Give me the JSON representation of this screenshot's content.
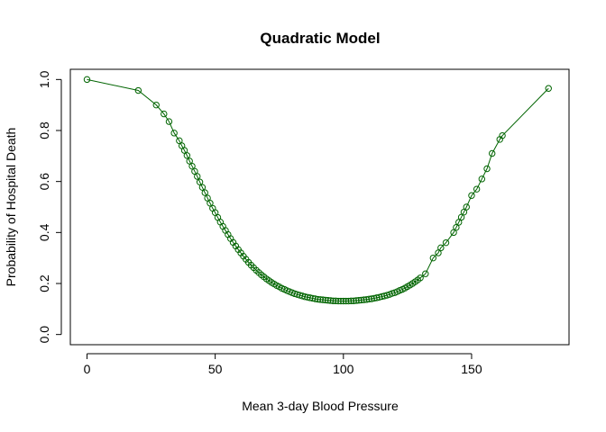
{
  "chart_data": {
    "type": "line",
    "title": "Quadratic Model",
    "xlabel": "Mean 3-day Blood Pressure",
    "ylabel": "Probability of Hospital Death",
    "xlim": [
      -6.5,
      188
    ],
    "ylim": [
      -0.04,
      1.04
    ],
    "x_ticks": [
      0,
      50,
      100,
      150
    ],
    "y_ticks": [
      0.0,
      0.2,
      0.4,
      0.6,
      0.8,
      1.0
    ],
    "x_tick_labels": [
      "0",
      "50",
      "100",
      "150"
    ],
    "y_tick_labels": [
      "0.0",
      "0.2",
      "0.4",
      "0.6",
      "0.8",
      "1.0"
    ],
    "grid": false,
    "legend": "none",
    "series": [
      {
        "color": "#006400",
        "marker": "open-circle",
        "x": [
          0,
          20,
          27,
          30,
          32,
          34,
          36,
          37,
          38,
          39,
          40,
          41,
          42,
          43,
          44,
          45,
          46,
          47,
          48,
          49,
          50,
          51,
          52,
          53,
          54,
          55,
          56,
          57,
          58,
          59,
          60,
          61,
          62,
          63,
          64,
          65,
          66,
          67,
          68,
          69,
          70,
          71,
          72,
          73,
          74,
          75,
          76,
          77,
          78,
          79,
          80,
          81,
          82,
          83,
          84,
          85,
          86,
          87,
          88,
          89,
          90,
          91,
          92,
          93,
          94,
          95,
          96,
          97,
          98,
          99,
          100,
          101,
          102,
          103,
          104,
          105,
          106,
          107,
          108,
          109,
          110,
          111,
          112,
          113,
          114,
          115,
          116,
          117,
          118,
          119,
          120,
          121,
          122,
          123,
          124,
          125,
          126,
          127,
          128,
          129,
          130,
          132,
          135,
          137,
          138,
          140,
          143,
          144,
          145,
          146,
          147,
          148,
          150,
          152,
          154,
          156,
          158,
          161,
          162,
          180
        ],
        "y": [
          1.0,
          0.957,
          0.9,
          0.865,
          0.835,
          0.79,
          0.76,
          0.74,
          0.722,
          0.702,
          0.68,
          0.66,
          0.64,
          0.62,
          0.598,
          0.577,
          0.556,
          0.535,
          0.515,
          0.495,
          0.478,
          0.459,
          0.441,
          0.424,
          0.408,
          0.392,
          0.376,
          0.361,
          0.347,
          0.333,
          0.32,
          0.307,
          0.295,
          0.283,
          0.272,
          0.262,
          0.252,
          0.243,
          0.234,
          0.226,
          0.218,
          0.211,
          0.204,
          0.198,
          0.192,
          0.187,
          0.181,
          0.177,
          0.172,
          0.168,
          0.164,
          0.16,
          0.157,
          0.154,
          0.151,
          0.148,
          0.146,
          0.144,
          0.142,
          0.14,
          0.138,
          0.137,
          0.136,
          0.135,
          0.134,
          0.133,
          0.132,
          0.132,
          0.131,
          0.131,
          0.131,
          0.131,
          0.131,
          0.132,
          0.132,
          0.133,
          0.134,
          0.135,
          0.136,
          0.137,
          0.139,
          0.14,
          0.142,
          0.144,
          0.146,
          0.149,
          0.151,
          0.154,
          0.157,
          0.161,
          0.164,
          0.168,
          0.173,
          0.177,
          0.182,
          0.188,
          0.194,
          0.2,
          0.207,
          0.214,
          0.222,
          0.238,
          0.3,
          0.32,
          0.34,
          0.36,
          0.4,
          0.42,
          0.44,
          0.46,
          0.48,
          0.5,
          0.545,
          0.57,
          0.61,
          0.65,
          0.71,
          0.765,
          0.78,
          0.965
        ]
      }
    ]
  }
}
